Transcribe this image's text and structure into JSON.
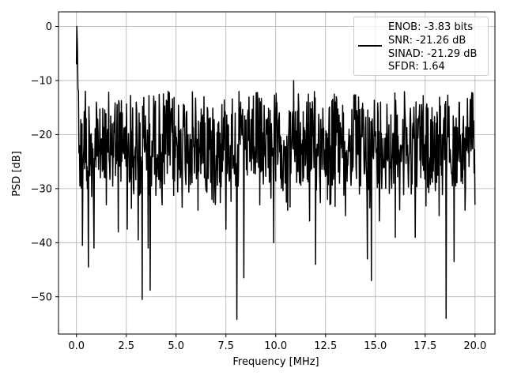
{
  "chart_data": {
    "type": "line",
    "title": "",
    "xlabel": "Frequency [MHz]",
    "ylabel": "PSD [dB]",
    "xlim": [
      -0.9,
      21.0
    ],
    "ylim": [
      -56.9,
      2.7
    ],
    "xticks": [
      0.0,
      2.5,
      5.0,
      7.5,
      10.0,
      12.5,
      15.0,
      17.5,
      20.0
    ],
    "xtick_labels": [
      "0.0",
      "2.5",
      "5.0",
      "7.5",
      "10.0",
      "12.5",
      "15.0",
      "17.5",
      "20.0"
    ],
    "yticks": [
      0,
      -10,
      -20,
      -30,
      -40,
      -50
    ],
    "ytick_labels": [
      "0",
      "−10",
      "−20",
      "−30",
      "−40",
      "−50"
    ],
    "grid": true,
    "legend_position": "top-right",
    "legend_lines": [
      "ENOB: -3.83 bits",
      "SNR: -21.26 dB",
      "SINAD: -21.29 dB",
      "SFDR: 1.64"
    ],
    "series": [
      {
        "color": "#000000",
        "description": "Dense noise-like PSD trace over 0 to 20 MHz; start spike near 0 dB, body mostly between -10 and -35 dB, deep dips listed as points",
        "points": [
          [
            0.0,
            -7
          ],
          [
            0.02,
            0.0
          ],
          [
            0.05,
            -4
          ],
          [
            0.1,
            -12
          ],
          [
            0.15,
            -22
          ],
          [
            0.2,
            -29
          ],
          [
            0.28,
            -18
          ],
          [
            0.3,
            -40.5
          ],
          [
            0.35,
            -24
          ],
          [
            0.45,
            -12
          ],
          [
            0.55,
            -30
          ],
          [
            0.6,
            -44.5
          ],
          [
            0.7,
            -20
          ],
          [
            0.85,
            -30
          ],
          [
            0.88,
            -41
          ],
          [
            1.0,
            -14
          ],
          [
            1.2,
            -28
          ],
          [
            1.5,
            -33
          ],
          [
            1.8,
            -18
          ],
          [
            2.1,
            -38
          ],
          [
            2.3,
            -16
          ],
          [
            2.55,
            -37.5
          ],
          [
            2.8,
            -26
          ],
          [
            3.0,
            -14
          ],
          [
            3.1,
            -39.5
          ],
          [
            3.3,
            -50.5
          ],
          [
            3.4,
            -22
          ],
          [
            3.6,
            -41
          ],
          [
            3.7,
            -48.8
          ],
          [
            3.9,
            -15
          ],
          [
            4.3,
            -33
          ],
          [
            4.6,
            -12
          ],
          [
            5.2,
            -28
          ],
          [
            5.6,
            -20
          ],
          [
            6.1,
            -34
          ],
          [
            6.4,
            -13
          ],
          [
            6.8,
            -32
          ],
          [
            7.1,
            -18
          ],
          [
            7.5,
            -37.5
          ],
          [
            7.8,
            -22
          ],
          [
            8.05,
            -54.2
          ],
          [
            8.2,
            -15
          ],
          [
            8.4,
            -46.5
          ],
          [
            8.7,
            -25
          ],
          [
            9.2,
            -33
          ],
          [
            9.6,
            -17
          ],
          [
            9.9,
            -40
          ],
          [
            10.3,
            -22
          ],
          [
            10.6,
            -34
          ],
          [
            10.9,
            -10
          ],
          [
            11.2,
            -29
          ],
          [
            11.7,
            -36
          ],
          [
            12.0,
            -44
          ],
          [
            12.3,
            -19
          ],
          [
            12.6,
            -32
          ],
          [
            13.0,
            -14
          ],
          [
            13.5,
            -35
          ],
          [
            13.9,
            -21
          ],
          [
            14.2,
            -31
          ],
          [
            14.6,
            -43
          ],
          [
            14.8,
            -47
          ],
          [
            15.2,
            -36
          ],
          [
            15.6,
            -19
          ],
          [
            16.0,
            -39
          ],
          [
            16.3,
            -25
          ],
          [
            16.8,
            -31
          ],
          [
            17.0,
            -39
          ],
          [
            17.3,
            -17
          ],
          [
            17.8,
            -28
          ],
          [
            18.2,
            -35
          ],
          [
            18.55,
            -54
          ],
          [
            18.8,
            -26
          ],
          [
            18.95,
            -43.5
          ],
          [
            19.2,
            -14
          ],
          [
            19.5,
            -34
          ],
          [
            19.8,
            -23
          ],
          [
            20.0,
            -33
          ]
        ]
      }
    ]
  }
}
